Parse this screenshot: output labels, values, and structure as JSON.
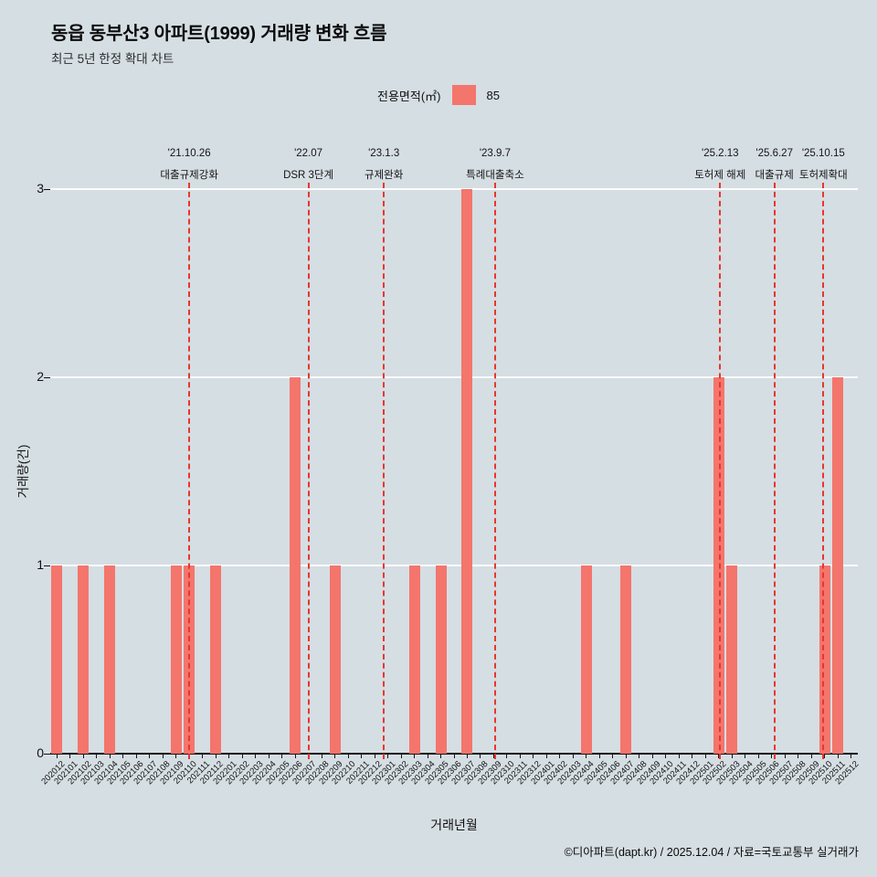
{
  "title": "동읍 동부산3 아파트(1999) 거래량 변화 흐름",
  "subtitle": "최근 5년 한정 확대 차트",
  "legend": {
    "label": "전용면적(㎡)",
    "value": "85",
    "color": "#f4756c"
  },
  "footer": "©디아파트(dapt.kr) / 2025.12.04 / 자료=국토교통부 실거래가",
  "colors": {
    "background": "#d5dee3",
    "bar": "#f4756c",
    "annotation_line": "#e8362c",
    "grid": "#fdfdfd",
    "axis": "#151515"
  },
  "chart_data": {
    "type": "bar",
    "title": "동읍 동부산3 아파트(1999) 거래량 변화 흐름",
    "subtitle": "최근 5년 한정 확대 차트",
    "xlabel": "거래년월",
    "ylabel": "거래량(건)",
    "ylim": [
      0,
      3
    ],
    "yticks": [
      0,
      1,
      2,
      3
    ],
    "grid": true,
    "legend_position": "top",
    "categories": [
      "202012",
      "202101",
      "202102",
      "202103",
      "202104",
      "202105",
      "202106",
      "202107",
      "202108",
      "202109",
      "202110",
      "202111",
      "202112",
      "202201",
      "202202",
      "202203",
      "202204",
      "202205",
      "202206",
      "202207",
      "202208",
      "202209",
      "202210",
      "202211",
      "202212",
      "202301",
      "202302",
      "202303",
      "202304",
      "202305",
      "202306",
      "202307",
      "202308",
      "202309",
      "202310",
      "202311",
      "202312",
      "202401",
      "202402",
      "202403",
      "202404",
      "202405",
      "202406",
      "202407",
      "202408",
      "202409",
      "202410",
      "202411",
      "202412",
      "202501",
      "202502",
      "202503",
      "202504",
      "202505",
      "202506",
      "202507",
      "202508",
      "202509",
      "202510",
      "202511",
      "202512"
    ],
    "series": [
      {
        "name": "85",
        "values": [
          1,
          0,
          1,
          0,
          1,
          0,
          0,
          0,
          0,
          1,
          1,
          0,
          1,
          0,
          0,
          0,
          0,
          0,
          2,
          0,
          0,
          1,
          0,
          0,
          0,
          0,
          0,
          1,
          0,
          1,
          0,
          3,
          0,
          0,
          0,
          0,
          0,
          0,
          0,
          0,
          1,
          0,
          0,
          1,
          0,
          0,
          0,
          0,
          0,
          0,
          2,
          1,
          0,
          0,
          0,
          0,
          0,
          0,
          1,
          2,
          0
        ]
      }
    ],
    "annotations": [
      {
        "date": "'21.10.26",
        "label": "대출규제강화",
        "pos": 10.5
      },
      {
        "date": "'22.07",
        "label": "DSR 3단계",
        "pos": 19.5
      },
      {
        "date": "'23.1.3",
        "label": "규제완화",
        "pos": 25.2
      },
      {
        "date": "'23.9.7",
        "label": "특례대출축소",
        "pos": 33.6
      },
      {
        "date": "'25.2.13",
        "label": "토허제 해제",
        "pos": 50.6
      },
      {
        "date": "'25.6.27",
        "label": "대출규제",
        "pos": 54.7
      },
      {
        "date": "'25.10.15",
        "label": "토허제확대",
        "pos": 58.4
      }
    ]
  }
}
